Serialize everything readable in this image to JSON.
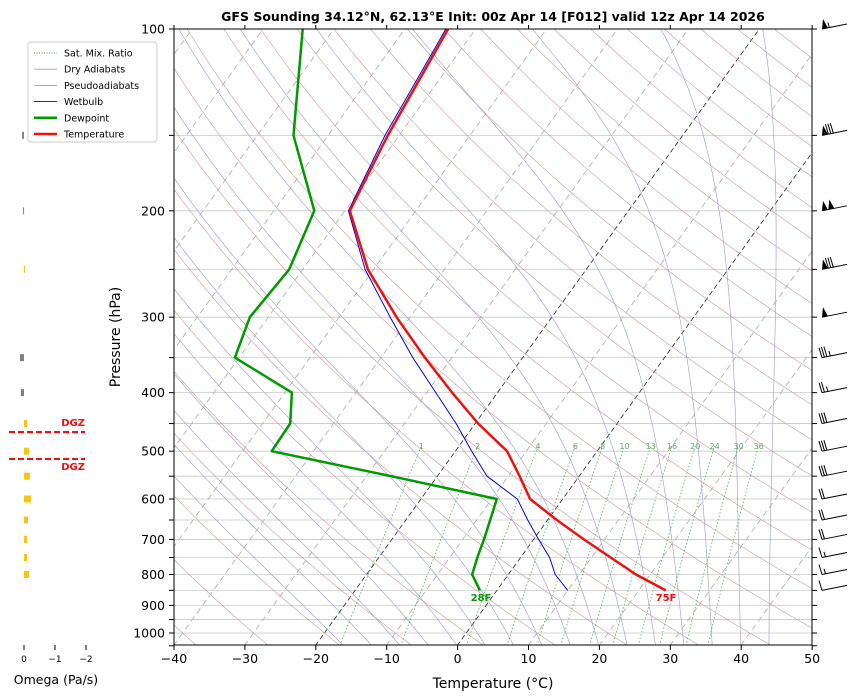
{
  "chart_data": {
    "type": "line",
    "subtype": "skew-t log-p sounding",
    "title": "GFS Sounding 34.12°N, 62.13°E Init: 00z Apr 14 [F012] valid 12z Apr 14 2026",
    "xlabel": "Temperature (°C)",
    "ylabel": "Pressure (hPa)",
    "xlim": [
      -40,
      50
    ],
    "ylim": [
      1050,
      100
    ],
    "x_ticks": [
      "−40",
      "−30",
      "−20",
      "−10",
      "0",
      "10",
      "20",
      "30",
      "40",
      "50"
    ],
    "x_tick_values": [
      -40,
      -30,
      -20,
      -10,
      0,
      10,
      20,
      30,
      40,
      50
    ],
    "y_ticks": [
      "100",
      "200",
      "300",
      "400",
      "500",
      "600",
      "700",
      "800",
      "900",
      "1000"
    ],
    "y_tick_values": [
      100,
      200,
      300,
      400,
      500,
      600,
      700,
      800,
      900,
      1000
    ],
    "grid": true,
    "legend": {
      "placement": "top-left",
      "entries": [
        {
          "label": "Sat. Mix. Ratio",
          "color": "#4a9a4a",
          "style": "dotted"
        },
        {
          "label": "Dry Adiabats",
          "color": "#c89a9a",
          "style": "solid"
        },
        {
          "label": "Pseudoadiabats",
          "color": "#9a9ac8",
          "style": "solid"
        },
        {
          "label": "Wetbulb",
          "color": "#0000dd",
          "style": "solid"
        },
        {
          "label": "Dewpoint",
          "color": "#009900",
          "style": "thick"
        },
        {
          "label": "Temperature",
          "color": "#ee1111",
          "style": "thick"
        }
      ]
    },
    "pressure": [
      850,
      800,
      750,
      700,
      650,
      600,
      550,
      500,
      450,
      400,
      350,
      300,
      250,
      200,
      150,
      100
    ],
    "series": [
      {
        "name": "Temperature",
        "color": "#ee1111",
        "values": [
          23.8,
          18.0,
          12.7,
          7.1,
          1.3,
          -4.6,
          -8.4,
          -12.7,
          -19.6,
          -26.4,
          -33.8,
          -41.9,
          -50.8,
          -59.3,
          -61.6,
          -63.9
        ]
      },
      {
        "name": "Dewpoint",
        "color": "#009900",
        "values": [
          -2.4,
          -5.1,
          -6.1,
          -7.0,
          -8.1,
          -9.3,
          -26.5,
          -45.9,
          -46.1,
          -49.0,
          -60.6,
          -62.6,
          -61.9,
          -64.3,
          -74.9,
          -84.4
        ]
      },
      {
        "name": "Wetbulb",
        "color": "#0000dd",
        "values": [
          10.0,
          6.6,
          4.1,
          0.7,
          -2.8,
          -6.4,
          -13.0,
          -17.7,
          -22.7,
          -28.7,
          -35.5,
          -42.8,
          -51.2,
          -59.5,
          -62.0,
          -64.2
        ]
      }
    ],
    "surface_labels": {
      "dewpoint": "28F",
      "temperature": "75F"
    },
    "mixing_ratio_labels": [
      "1",
      "2",
      "4",
      "6",
      "8",
      "10",
      "13",
      "16",
      "20",
      "24",
      "30",
      "36"
    ],
    "mixing_ratio_values": [
      1,
      2,
      4,
      6,
      8,
      10,
      13,
      16,
      20,
      24,
      30,
      36
    ],
    "winds": {
      "pressure": [
        100,
        150,
        200,
        250,
        300,
        350,
        400,
        450,
        500,
        550,
        600,
        650,
        700,
        750,
        800,
        850
      ],
      "speed_kt": [
        55,
        80,
        100,
        80,
        50,
        35,
        25,
        30,
        30,
        30,
        20,
        20,
        20,
        15,
        15,
        10
      ],
      "direction_deg": [
        260,
        255,
        270,
        270,
        260,
        260,
        260,
        270,
        270,
        270,
        250,
        250,
        245,
        245,
        240,
        240
      ]
    },
    "omega": {
      "xlabel": "Omega (Pa/s)",
      "x_ticks": [
        "0",
        "−1",
        "−2"
      ],
      "x_tick_values": [
        0,
        -1,
        -2
      ],
      "pressure": [
        150,
        200,
        250,
        350,
        400,
        450,
        500,
        550,
        600,
        650,
        700,
        750,
        800
      ],
      "values": [
        0.06,
        0.03,
        -0.03,
        0.13,
        0.1,
        -0.1,
        -0.16,
        -0.19,
        -0.23,
        -0.13,
        -0.1,
        -0.1,
        -0.16
      ],
      "colors": {
        "rising": "#f5c518",
        "sinking": "#808080"
      }
    },
    "dgz": {
      "label": "DGZ",
      "top_hpa": 465,
      "bottom_hpa": 515,
      "color": "#ee1111"
    }
  }
}
